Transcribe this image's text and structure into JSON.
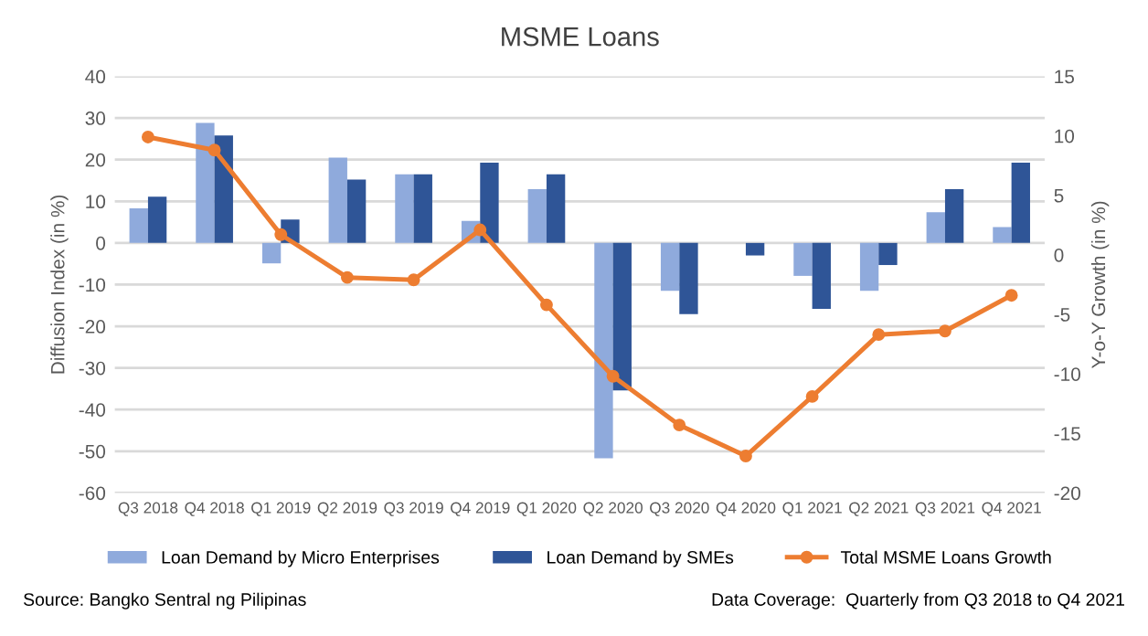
{
  "chart_data": {
    "type": "bar",
    "title": "MSME Loans",
    "categories": [
      "Q3 2018",
      "Q4 2018",
      "Q1 2019",
      "Q2 2019",
      "Q3 2019",
      "Q4 2019",
      "Q1 2020",
      "Q2 2020",
      "Q3 2020",
      "Q4 2020",
      "Q1 2021",
      "Q2 2021",
      "Q3 2021",
      "Q4 2021"
    ],
    "series": [
      {
        "name": "Loan Demand by Micro Enterprises",
        "color": "#8faadc",
        "values": [
          8.3,
          28.8,
          -4.9,
          20.5,
          16.5,
          5.3,
          12.9,
          -51.7,
          -11.5,
          null,
          -7.9,
          -11.5,
          7.4,
          3.8
        ]
      },
      {
        "name": "Loan Demand by SMEs",
        "color": "#2f5597",
        "values": [
          11.1,
          25.8,
          5.6,
          15.2,
          16.5,
          19.3,
          16.5,
          -35.4,
          -17.1,
          -3.0,
          -15.8,
          -5.3,
          12.9,
          19.3
        ]
      },
      {
        "name": "Total MSME Loans Growth",
        "type": "line",
        "axis": "y2",
        "color": "#ed7d31",
        "values": [
          9.9,
          8.8,
          1.7,
          -1.9,
          -2.1,
          2.1,
          -4.2,
          -10.2,
          -14.3,
          -16.9,
          -11.9,
          -6.7,
          -6.4,
          -3.4
        ]
      }
    ],
    "ylabel": "Diffusion Index (in %)",
    "y2label": "Y-o-Y Growth (in %)",
    "ylim": [
      -60,
      40
    ],
    "yticks": [
      -60,
      -50,
      -40,
      -30,
      -20,
      -10,
      0,
      10,
      20,
      30,
      40
    ],
    "y2lim": [
      -20,
      15
    ],
    "y2ticks": [
      -20,
      -15,
      -10,
      -5,
      0,
      5,
      10,
      15
    ],
    "grid": "y",
    "legend": "bottom",
    "marker": "circle",
    "annotations": [
      "Source: Bangko Sentral ng Pilipinas",
      "Data Coverage:  Quarterly from Q3 2018 to Q4 2021"
    ]
  }
}
